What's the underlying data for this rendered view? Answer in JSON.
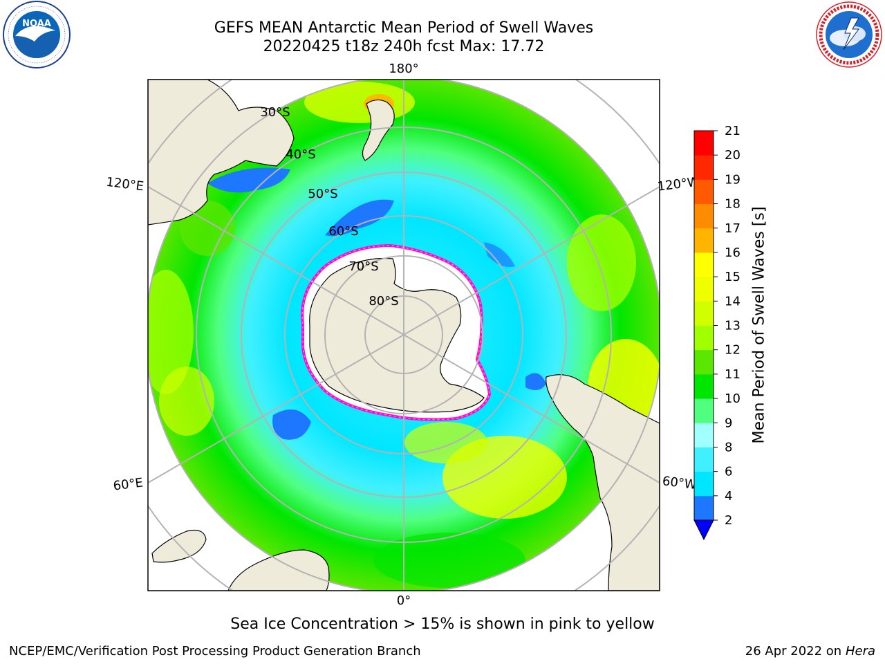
{
  "title": {
    "line1": "GEFS MEAN Antarctic Mean Period of Swell Waves",
    "line2": "20220425 t18z 240h fcst   Max: 17.72"
  },
  "logos": {
    "left": {
      "icon": "noaa-logo",
      "text": "NOAA",
      "ring": "NATIONAL OCEANIC AND ATMOSPHERIC ADMINISTRATION · U.S. DEPARTMENT OF COMMERCE"
    },
    "right": {
      "icon": "nws-logo",
      "ring": "NATIONAL WEATHER SERVICE"
    }
  },
  "map": {
    "projection": "south-polar-stereographic",
    "longitude_labels": [
      "180°",
      "120°E",
      "120°W",
      "60°E",
      "60°W",
      "0°"
    ],
    "latitude_labels": [
      "30°S",
      "40°S",
      "50°S",
      "60°S",
      "70°S",
      "80°S"
    ],
    "land_color": "#efebdb",
    "ocean_no_data_color": "#ffffff",
    "sea_ice_edge_colors": [
      "#ff00ff",
      "#ffa500",
      "#ffff00"
    ]
  },
  "colorbar": {
    "label": "Mean Period of Swell Waves [s]",
    "ticks": [
      "2",
      "4",
      "6",
      "8",
      "9",
      "10",
      "11",
      "12",
      "13",
      "14",
      "15",
      "16",
      "17",
      "18",
      "19",
      "20",
      "21"
    ],
    "colors": [
      "#0000ff",
      "#1e78ff",
      "#00e6ff",
      "#40f0ff",
      "#a0ffff",
      "#50ff80",
      "#00e600",
      "#5ae600",
      "#a0ff00",
      "#d2ff00",
      "#f0ff00",
      "#ffff00",
      "#ffb400",
      "#ff8c00",
      "#ff5a00",
      "#ff2800",
      "#ff0000"
    ],
    "extend_below": true,
    "extend_color": "#0000ff"
  },
  "caption": "Sea Ice Concentration > 15% is shown in pink to yellow",
  "footer": {
    "left": "NCEP/EMC/Verification Post Processing Product Generation Branch",
    "right_date": "26 Apr 2022 on",
    "right_host": "Hera"
  }
}
